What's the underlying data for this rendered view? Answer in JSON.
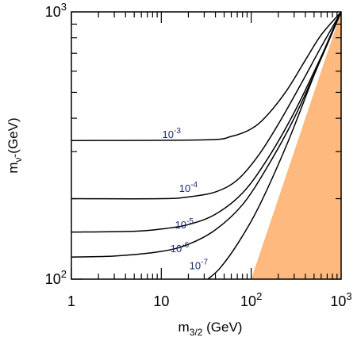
{
  "chart_data": {
    "type": "line",
    "xscale": "log",
    "yscale": "log",
    "xlim": [
      1,
      1000
    ],
    "ylim": [
      100,
      1000
    ],
    "x_ticks": [
      {
        "value": 1,
        "label": "1"
      },
      {
        "value": 10,
        "label": "10"
      },
      {
        "value": 100,
        "label": "10",
        "exp": "2"
      },
      {
        "value": 1000,
        "label": "10",
        "exp": "3"
      }
    ],
    "y_ticks": [
      {
        "value": 100,
        "label": "10",
        "exp": "2"
      },
      {
        "value": 1000,
        "label": "10",
        "exp": "3"
      }
    ],
    "xlabel": {
      "main": "m",
      "sub": "3/2",
      "unit": " (GeV)"
    },
    "ylabel": {
      "main": "m",
      "sub": "ν̃",
      "unit": " (GeV)"
    },
    "series": [
      {
        "name": "10",
        "exp": "-3",
        "label_at": [
          13,
          338
        ],
        "x": [
          1,
          30,
          60,
          100,
          150,
          250,
          400,
          600,
          1000
        ],
        "y": [
          330,
          332,
          342,
          365,
          410,
          510,
          660,
          820,
          1000
        ]
      },
      {
        "name": "10",
        "exp": "-4",
        "label_at": [
          20,
          212
        ],
        "x": [
          1,
          10,
          20,
          40,
          70,
          120,
          200,
          350,
          600,
          1000
        ],
        "y": [
          200,
          200,
          203,
          212,
          235,
          290,
          380,
          530,
          740,
          1000
        ]
      },
      {
        "name": "10",
        "exp": "-5",
        "label_at": [
          18,
          155
        ],
        "x": [
          1,
          5,
          10,
          20,
          40,
          80,
          150,
          300,
          600,
          1000
        ],
        "y": [
          150,
          151,
          154,
          160,
          175,
          210,
          280,
          420,
          680,
          1000
        ]
      },
      {
        "name": "10",
        "exp": "-6",
        "label_at": [
          16,
          126
        ],
        "x": [
          1,
          3,
          10,
          20,
          40,
          80,
          150,
          300,
          600,
          1000
        ],
        "y": [
          121,
          122,
          127,
          135,
          153,
          190,
          262,
          400,
          670,
          1000
        ]
      },
      {
        "name": "10",
        "exp": "-7",
        "label_at": [
          26,
          109
        ],
        "x": [
          33,
          45,
          70,
          120,
          250,
          500,
          800,
          1000
        ],
        "y": [
          100,
          110,
          135,
          185,
          320,
          580,
          850,
          1000
        ]
      }
    ],
    "excluded_region": {
      "color": "#fdb97e",
      "boundary_x": [
        100,
        1000,
        1000
      ],
      "boundary_y": [
        100,
        1000,
        100
      ]
    },
    "grid": false,
    "legend": "none"
  }
}
